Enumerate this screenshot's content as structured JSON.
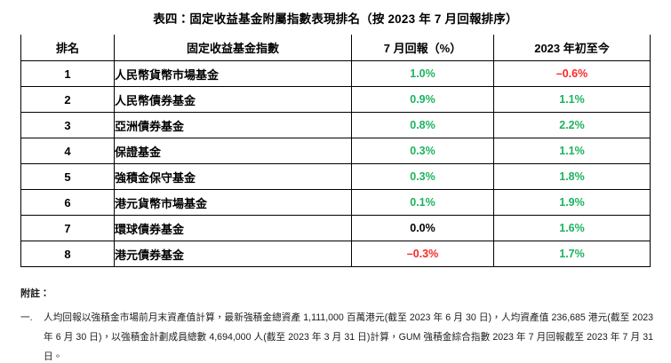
{
  "title": "表四：固定收益基金附屬指數表現排名（按 2023 年 7 月回報排序）",
  "table": {
    "headers": [
      "排名",
      "固定收益基金指數",
      "7 月回報（%）",
      "2023 年初至今"
    ],
    "rows": [
      {
        "rank": "1",
        "name": "人民幣貨幣市場基金",
        "july_return": "1.0%",
        "july_class": "pos",
        "ytd_return": "–0.6%",
        "ytd_class": "neg"
      },
      {
        "rank": "2",
        "name": "人民幣債券基金",
        "july_return": "0.9%",
        "july_class": "pos",
        "ytd_return": "1.1%",
        "ytd_class": "pos"
      },
      {
        "rank": "3",
        "name": "亞洲債券基金",
        "july_return": "0.8%",
        "july_class": "pos",
        "ytd_return": "2.2%",
        "ytd_class": "pos"
      },
      {
        "rank": "4",
        "name": "保證基金",
        "july_return": "0.3%",
        "july_class": "pos",
        "ytd_return": "1.1%",
        "ytd_class": "pos"
      },
      {
        "rank": "5",
        "name": "強積金保守基金",
        "july_return": "0.3%",
        "july_class": "pos",
        "ytd_return": "1.8%",
        "ytd_class": "pos"
      },
      {
        "rank": "6",
        "name": "港元貨幣市場基金",
        "july_return": "0.1%",
        "july_class": "pos",
        "ytd_return": "1.9%",
        "ytd_class": "pos"
      },
      {
        "rank": "7",
        "name": "環球債券基金",
        "july_return": "0.0%",
        "july_class": "neu",
        "ytd_return": "1.6%",
        "ytd_class": "pos"
      },
      {
        "rank": "8",
        "name": "港元債券基金",
        "july_return": "–0.3%",
        "july_class": "neg",
        "ytd_return": "1.7%",
        "ytd_class": "pos"
      }
    ]
  },
  "notes": {
    "heading": "附註：",
    "items": [
      {
        "marker": "一.",
        "text": "人均回報以強積金市場前月末資產值計算，最新強積金總資產 1,111,000 百萬港元(截至 2023 年 6 月 30 日)，人均資產值 236,685 港元(截至 2023 年 6 月 30 日)，以強積金計劃成員總數 4,694,000 人(截至 2023 年 3 月 31 日)計算，GUM 強積金綜合指數 2023 年 7 月回報截至 2023 年 7 月 31 日。"
      }
    ]
  },
  "colors": {
    "positive": "#1cb35f",
    "negative": "#fc2626",
    "neutral": "#000000"
  }
}
